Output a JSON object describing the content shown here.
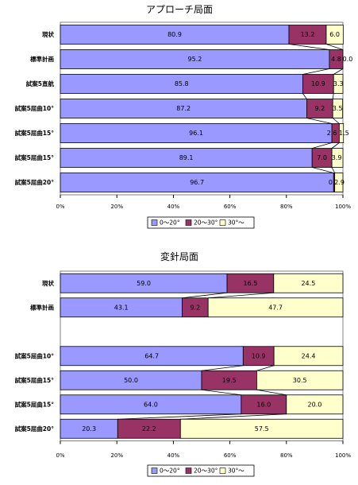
{
  "colors": {
    "s1": "#9999ff",
    "s2": "#993366",
    "s3": "#ffffcc",
    "edge": "#000000"
  },
  "chart_data": [
    {
      "type": "bar",
      "stacked": "percent",
      "orientation": "horizontal",
      "title": "アプローチ局面",
      "categories": [
        "現状",
        "標準計画",
        "試案5直航",
        "試案5屈曲10°",
        "試案5屈曲15°",
        "試案5屈曲15°",
        "試案5屈曲20°"
      ],
      "series": [
        {
          "name": "0～20°",
          "values": [
            80.9,
            95.2,
            85.8,
            87.2,
            96.1,
            89.1,
            96.7
          ]
        },
        {
          "name": "20～30°",
          "values": [
            13.2,
            4.8,
            10.9,
            9.2,
            2.6,
            7.0,
            0.4
          ]
        },
        {
          "name": "30°～",
          "values": [
            6.0,
            0.0,
            3.3,
            3.5,
            1.5,
            3.9,
            2.9
          ]
        }
      ],
      "labels": [
        [
          "80.9",
          "13.2",
          "6.0"
        ],
        [
          "95.2",
          "4.8",
          "0.0"
        ],
        [
          "85.8",
          "10.9",
          "3.3"
        ],
        [
          "87.2",
          "9.2",
          "3.5"
        ],
        [
          "96.1",
          "2.6",
          "1.5"
        ],
        [
          "89.1",
          "7.0",
          "3.9"
        ],
        [
          "96.7",
          "0.4",
          "2.9"
        ]
      ],
      "xticks": [
        "0%",
        "20%",
        "40%",
        "60%",
        "80%",
        "100%"
      ],
      "xlim": [
        0,
        100
      ],
      "legend": "bottom"
    },
    {
      "type": "bar",
      "stacked": "percent",
      "orientation": "horizontal",
      "title": "変針局面",
      "categories": [
        "現状",
        "標準計画",
        "",
        "試案5屈曲10°",
        "試案5屈曲15°",
        "試案5屈曲15°",
        "試案5屈曲20°"
      ],
      "series": [
        {
          "name": "0～20°",
          "values": [
            59.0,
            43.1,
            null,
            64.7,
            50.0,
            64.0,
            20.3
          ]
        },
        {
          "name": "20～30°",
          "values": [
            16.5,
            9.2,
            null,
            10.9,
            19.5,
            16.0,
            22.2
          ]
        },
        {
          "name": "30°～",
          "values": [
            24.5,
            47.7,
            null,
            24.4,
            30.5,
            20.0,
            57.5
          ]
        }
      ],
      "labels": [
        [
          "59.0",
          "16.5",
          "24.5"
        ],
        [
          "43.1",
          "9.2",
          "47.7"
        ],
        null,
        [
          "64.7",
          "10.9",
          "24.4"
        ],
        [
          "50.0",
          "19.5",
          "30.5"
        ],
        [
          "64.0",
          "16.0",
          "20.0"
        ],
        [
          "20.3",
          "22.2",
          "57.5"
        ]
      ],
      "xticks": [
        "0%",
        "20%",
        "40%",
        "60%",
        "80%",
        "100%"
      ],
      "xlim": [
        0,
        100
      ],
      "legend": "bottom"
    }
  ]
}
